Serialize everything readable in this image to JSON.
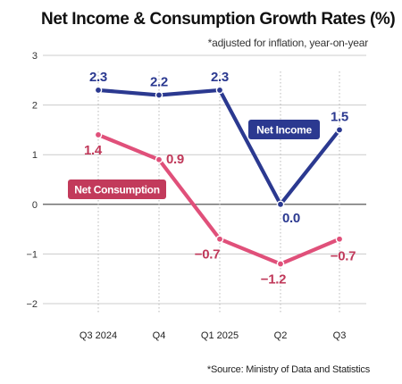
{
  "chart_data": {
    "type": "line",
    "title": "Net Income & Consumption Growth Rates (%)",
    "subtitle": "*adjusted for inflation, year-on-year",
    "source": "*Source: Ministry of Data and Statistics",
    "categories": [
      "Q3 2024",
      "Q4",
      "Q1 2025",
      "Q2",
      "Q3"
    ],
    "ylim": [
      -2,
      3
    ],
    "yticks": [
      3,
      2,
      1,
      0,
      -1,
      -2
    ],
    "ytick_labels": [
      "3",
      "2",
      "1",
      "0",
      "−1",
      "−2"
    ],
    "grid": true,
    "series": [
      {
        "name": "Net Income",
        "values": [
          2.3,
          2.2,
          2.3,
          0.0,
          1.5
        ],
        "labels": [
          "2.3",
          "2.2",
          "2.3",
          "0.0",
          "1.5"
        ],
        "color": "#2b3990"
      },
      {
        "name": "Net Consumption",
        "values": [
          1.4,
          0.9,
          -0.7,
          -1.2,
          -0.7
        ],
        "labels": [
          "1.4",
          "0.9",
          "−0.7",
          "−1.2",
          "−0.7"
        ],
        "color": "#e0507a"
      }
    ],
    "colors": {
      "consumption_label_text": "#c0395a",
      "consumption_badge": "#c23a5b",
      "grid": "#cccccc",
      "zero_line": "#444444"
    }
  }
}
